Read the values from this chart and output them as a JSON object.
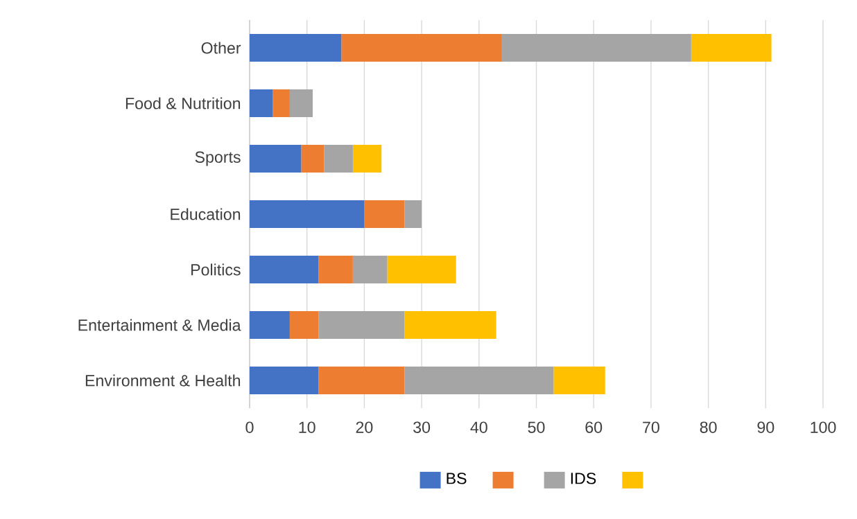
{
  "chart_data": {
    "type": "bar",
    "orientation": "horizontal",
    "stacked": true,
    "categories": [
      "Other",
      "Food & Nutrition",
      "Sports",
      "Education",
      "Politics",
      "Entertainment & Media",
      "Environment & Health"
    ],
    "series": [
      {
        "name": "BS",
        "color": "#4472c4",
        "values": [
          16,
          4,
          9,
          20,
          12,
          7,
          12
        ]
      },
      {
        "color": "#ed7d31",
        "values": [
          28,
          3,
          4,
          7,
          6,
          5,
          15
        ]
      },
      {
        "name": "IDS",
        "color": "#a5a5a5",
        "values": [
          33,
          4,
          5,
          3,
          6,
          15,
          26
        ]
      },
      {
        "color": "#ffc000",
        "values": [
          14,
          0,
          5,
          0,
          12,
          16,
          9
        ]
      }
    ],
    "xlim": [
      0,
      100
    ],
    "xticks": [
      0,
      10,
      20,
      30,
      40,
      50,
      60,
      70,
      80,
      90,
      100
    ],
    "grid": "x",
    "legend": "bottom"
  }
}
